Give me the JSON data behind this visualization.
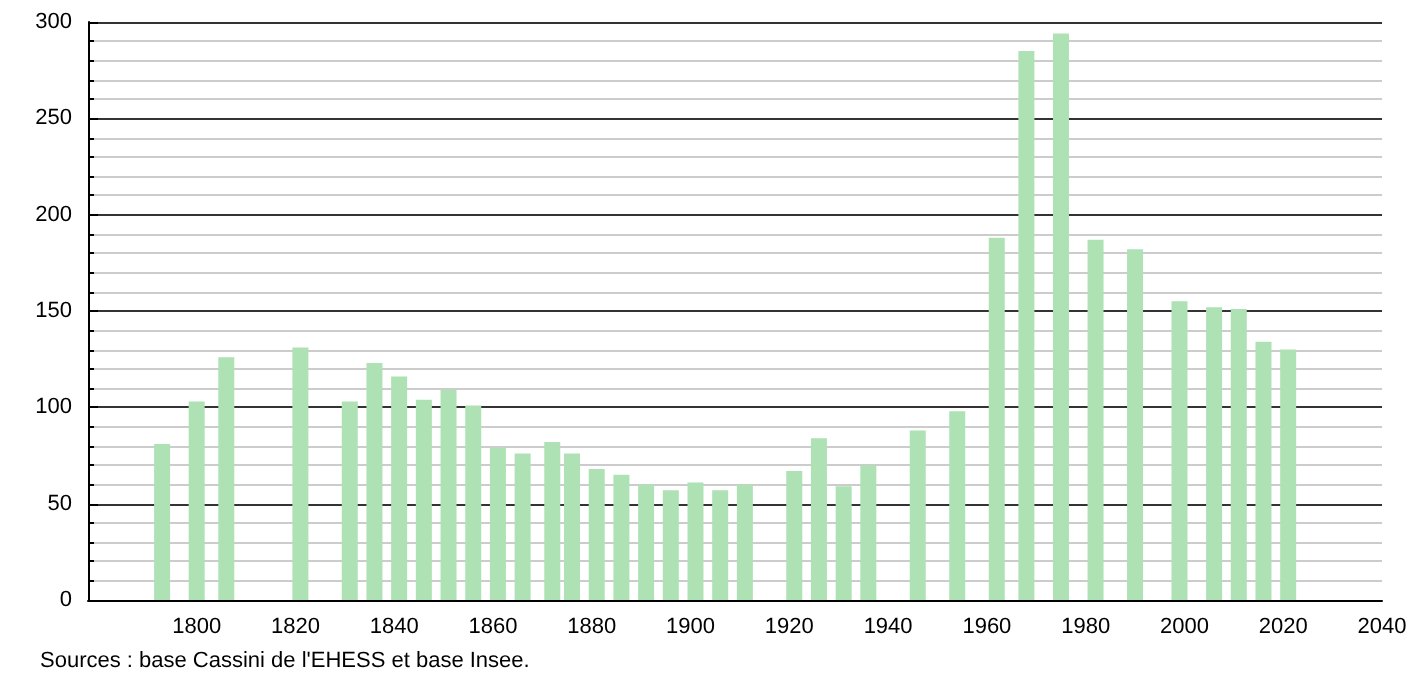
{
  "chart_data": {
    "type": "bar",
    "x": [
      1793,
      1800,
      1806,
      1821,
      1831,
      1836,
      1841,
      1846,
      1851,
      1856,
      1861,
      1866,
      1872,
      1876,
      1881,
      1886,
      1891,
      1896,
      1901,
      1906,
      1911,
      1921,
      1926,
      1931,
      1936,
      1946,
      1954,
      1962,
      1968,
      1975,
      1982,
      1990,
      1999,
      2006,
      2011,
      2016,
      2021
    ],
    "values": [
      81,
      103,
      126,
      131,
      103,
      123,
      116,
      104,
      109,
      101,
      79,
      76,
      82,
      76,
      68,
      65,
      60,
      57,
      61,
      57,
      60,
      67,
      84,
      59,
      70,
      88,
      98,
      188,
      285,
      294,
      187,
      182,
      155,
      152,
      151,
      134,
      130
    ],
    "color": "#aee2b4",
    "xlim": [
      1778,
      2040
    ],
    "xticks": [
      1800,
      1820,
      1840,
      1860,
      1880,
      1900,
      1920,
      1940,
      1960,
      1980,
      2000,
      2020,
      2040
    ],
    "ylim": [
      0,
      300
    ],
    "yticks": [
      0,
      50,
      100,
      150,
      200,
      250,
      300
    ],
    "grid": "y",
    "annotations": [
      "Sources : base Cassini de l'EHESS et base Insee."
    ]
  }
}
